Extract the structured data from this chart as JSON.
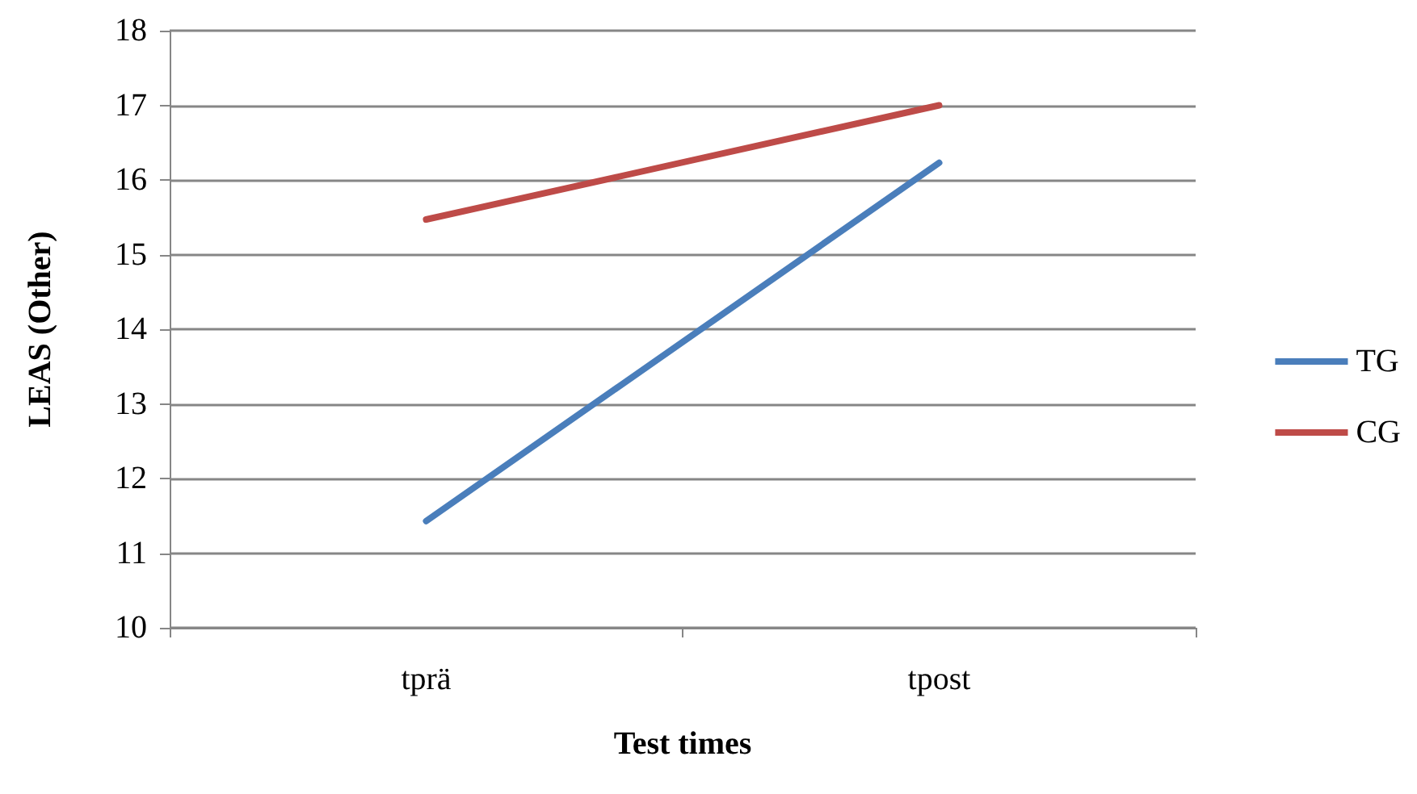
{
  "chart_data": {
    "type": "line",
    "xlabel": "Test times",
    "ylabel": "LEAS (Other)",
    "categories": [
      "tprä",
      "tpost"
    ],
    "series": [
      {
        "name": "TG",
        "color": "#4a7ebb",
        "values": [
          11.43,
          16.23
        ]
      },
      {
        "name": "CG",
        "color": "#be4b48",
        "values": [
          15.47,
          17.0
        ]
      }
    ],
    "ylim": [
      10,
      18
    ],
    "yticks": [
      10,
      11,
      12,
      13,
      14,
      15,
      16,
      17,
      18
    ],
    "grid": "y",
    "legend": "right",
    "marker": "none",
    "line_style": "solid"
  }
}
